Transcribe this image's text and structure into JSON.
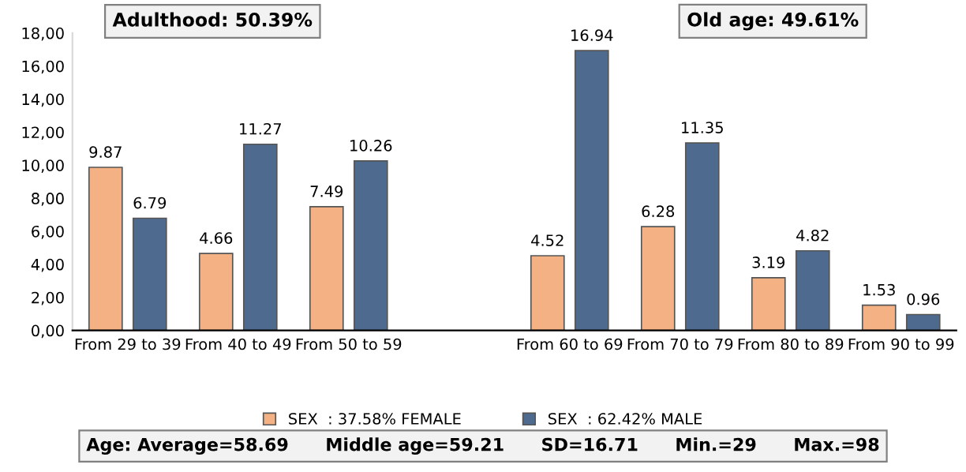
{
  "chart_data": {
    "type": "bar",
    "categories": [
      "From 29 to 39",
      "From 40 to 49",
      "From 50 to 59",
      null,
      "From 60 to 69",
      "From 70 to 79",
      "From 80 to 89",
      "From 90 to 99"
    ],
    "series": [
      {
        "name": "SEX  : 37.58% FEMALE",
        "color": "#f4b183",
        "values": [
          9.87,
          4.66,
          7.49,
          null,
          4.52,
          6.28,
          3.19,
          1.53
        ]
      },
      {
        "name": "SEX  : 62.42% MALE",
        "color": "#4f6a8f",
        "values": [
          6.79,
          11.27,
          10.26,
          null,
          16.94,
          11.35,
          4.82,
          0.96
        ]
      }
    ],
    "ylim": [
      0,
      18
    ],
    "yticks": [
      {
        "value": 0,
        "label": "0,00"
      },
      {
        "value": 2,
        "label": "2,00"
      },
      {
        "value": 4,
        "label": "4,00"
      },
      {
        "value": 6,
        "label": "6,00"
      },
      {
        "value": 8,
        "label": "8,00"
      },
      {
        "value": 10,
        "label": "10,00"
      },
      {
        "value": 12,
        "label": "12,00"
      },
      {
        "value": 14,
        "label": "14,00"
      },
      {
        "value": 16,
        "label": "16,00"
      },
      {
        "value": 18,
        "label": "18,00"
      }
    ],
    "data_labels": true,
    "grid": false,
    "legend": "bottom",
    "annotations": [
      "Adulthood: 50.39%",
      "Old age: 49.61%",
      "Age: Average=58.69      Middle age=59.21      SD=16.71      Min.=29      Max.=98"
    ]
  }
}
